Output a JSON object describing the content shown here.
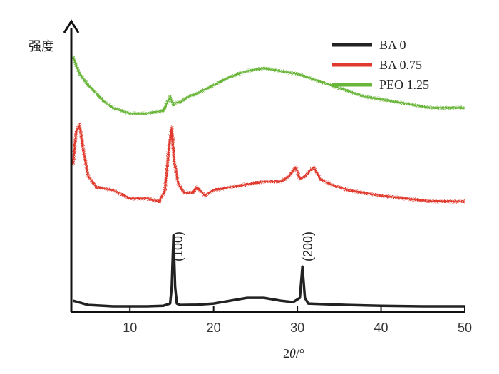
{
  "chart_data": {
    "type": "line",
    "xlabel_prefix": "2",
    "xlabel_var": "θ",
    "xlabel_suffix": "/°",
    "ylabel": "强度",
    "xlim": [
      3,
      50
    ],
    "xticks": [
      10,
      20,
      30,
      40,
      50
    ],
    "grid": false,
    "legend_position": "top-right",
    "annotations": [
      {
        "text": "(100)",
        "x": 16.3
      },
      {
        "text": "(200)",
        "x": 31.8
      }
    ],
    "series": [
      {
        "name": "BA 0",
        "color": "#222222",
        "x": [
          3.2,
          5,
          8,
          10,
          12,
          14,
          14.8,
          15.0,
          15.2,
          15.4,
          15.6,
          16,
          18,
          20,
          22,
          24,
          26,
          28,
          29.5,
          30.3,
          30.6,
          30.9,
          31.3,
          33,
          36,
          40,
          45,
          50
        ],
        "y": [
          0.04,
          0.025,
          0.02,
          0.02,
          0.02,
          0.022,
          0.03,
          0.09,
          0.27,
          0.09,
          0.03,
          0.025,
          0.026,
          0.03,
          0.04,
          0.05,
          0.05,
          0.04,
          0.035,
          0.05,
          0.16,
          0.05,
          0.03,
          0.028,
          0.025,
          0.022,
          0.02,
          0.02
        ]
      },
      {
        "name": "BA 0.75",
        "color": "#e03a2e",
        "x": [
          3.2,
          3.6,
          4.0,
          4.4,
          5.0,
          6,
          8,
          10,
          12,
          13.5,
          14.2,
          14.7,
          15.0,
          15.3,
          15.8,
          16.5,
          17.5,
          18,
          19,
          20,
          22,
          24,
          26,
          28,
          29,
          29.8,
          30.3,
          31,
          31.5,
          32,
          32.7,
          34,
          36,
          38,
          40,
          43,
          46,
          50
        ],
        "y": [
          0.52,
          0.64,
          0.66,
          0.58,
          0.48,
          0.44,
          0.43,
          0.4,
          0.4,
          0.39,
          0.43,
          0.59,
          0.65,
          0.53,
          0.45,
          0.42,
          0.42,
          0.44,
          0.41,
          0.43,
          0.44,
          0.45,
          0.46,
          0.46,
          0.48,
          0.51,
          0.47,
          0.48,
          0.5,
          0.51,
          0.47,
          0.45,
          0.43,
          0.42,
          0.41,
          0.4,
          0.39,
          0.39
        ]
      },
      {
        "name": "PEO 1.25",
        "color": "#6ab63a",
        "x": [
          3.2,
          4,
          5,
          6,
          7,
          8,
          10,
          12,
          14,
          14.8,
          15.2,
          15.6,
          16,
          17,
          18,
          20,
          22,
          24,
          26,
          28,
          30,
          32,
          34,
          36,
          38,
          40,
          42,
          44,
          46,
          48,
          50
        ],
        "y": [
          0.9,
          0.84,
          0.8,
          0.77,
          0.74,
          0.72,
          0.7,
          0.7,
          0.71,
          0.76,
          0.73,
          0.74,
          0.74,
          0.76,
          0.77,
          0.8,
          0.83,
          0.85,
          0.86,
          0.85,
          0.84,
          0.82,
          0.8,
          0.78,
          0.76,
          0.75,
          0.74,
          0.73,
          0.72,
          0.72,
          0.72
        ]
      }
    ]
  }
}
